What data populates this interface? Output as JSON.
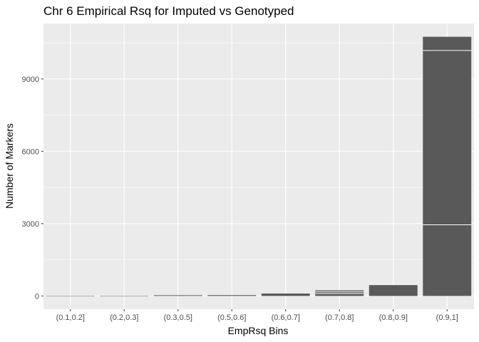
{
  "chart_data": {
    "type": "bar",
    "title": "Chr 6 Empirical Rsq for Imputed vs Genotyped",
    "xlabel": "EmpRsq Bins",
    "ylabel": "Number of Markers",
    "categories": [
      "(0.1,0.2]",
      "(0.2,0.3]",
      "(0.3,0.5]",
      "(0.5,0.6]",
      "(0.6,0.7]",
      "(0.7,0.8]",
      "(0.8,0.9]",
      "(0.9,1]"
    ],
    "values": [
      2,
      3,
      30,
      35,
      100,
      230,
      450,
      10750
    ],
    "segment_boundaries": [
      [],
      [],
      [],
      [],
      [],
      [
        100,
        170
      ],
      [],
      [
        2950,
        10180
      ]
    ],
    "ylim": [
      -550,
      11300
    ],
    "yticks": [
      0,
      3000,
      6000,
      9000
    ],
    "ytick_labels": [
      "0",
      "3000",
      "6000",
      "9000"
    ],
    "grid": true,
    "colors": {
      "panel": "#ebebeb",
      "grid_major": "#ffffff",
      "bar": "#595959",
      "segment_line": "#ffffff",
      "tick_text": "#4d4d4d",
      "tick_mark": "#333333"
    }
  }
}
